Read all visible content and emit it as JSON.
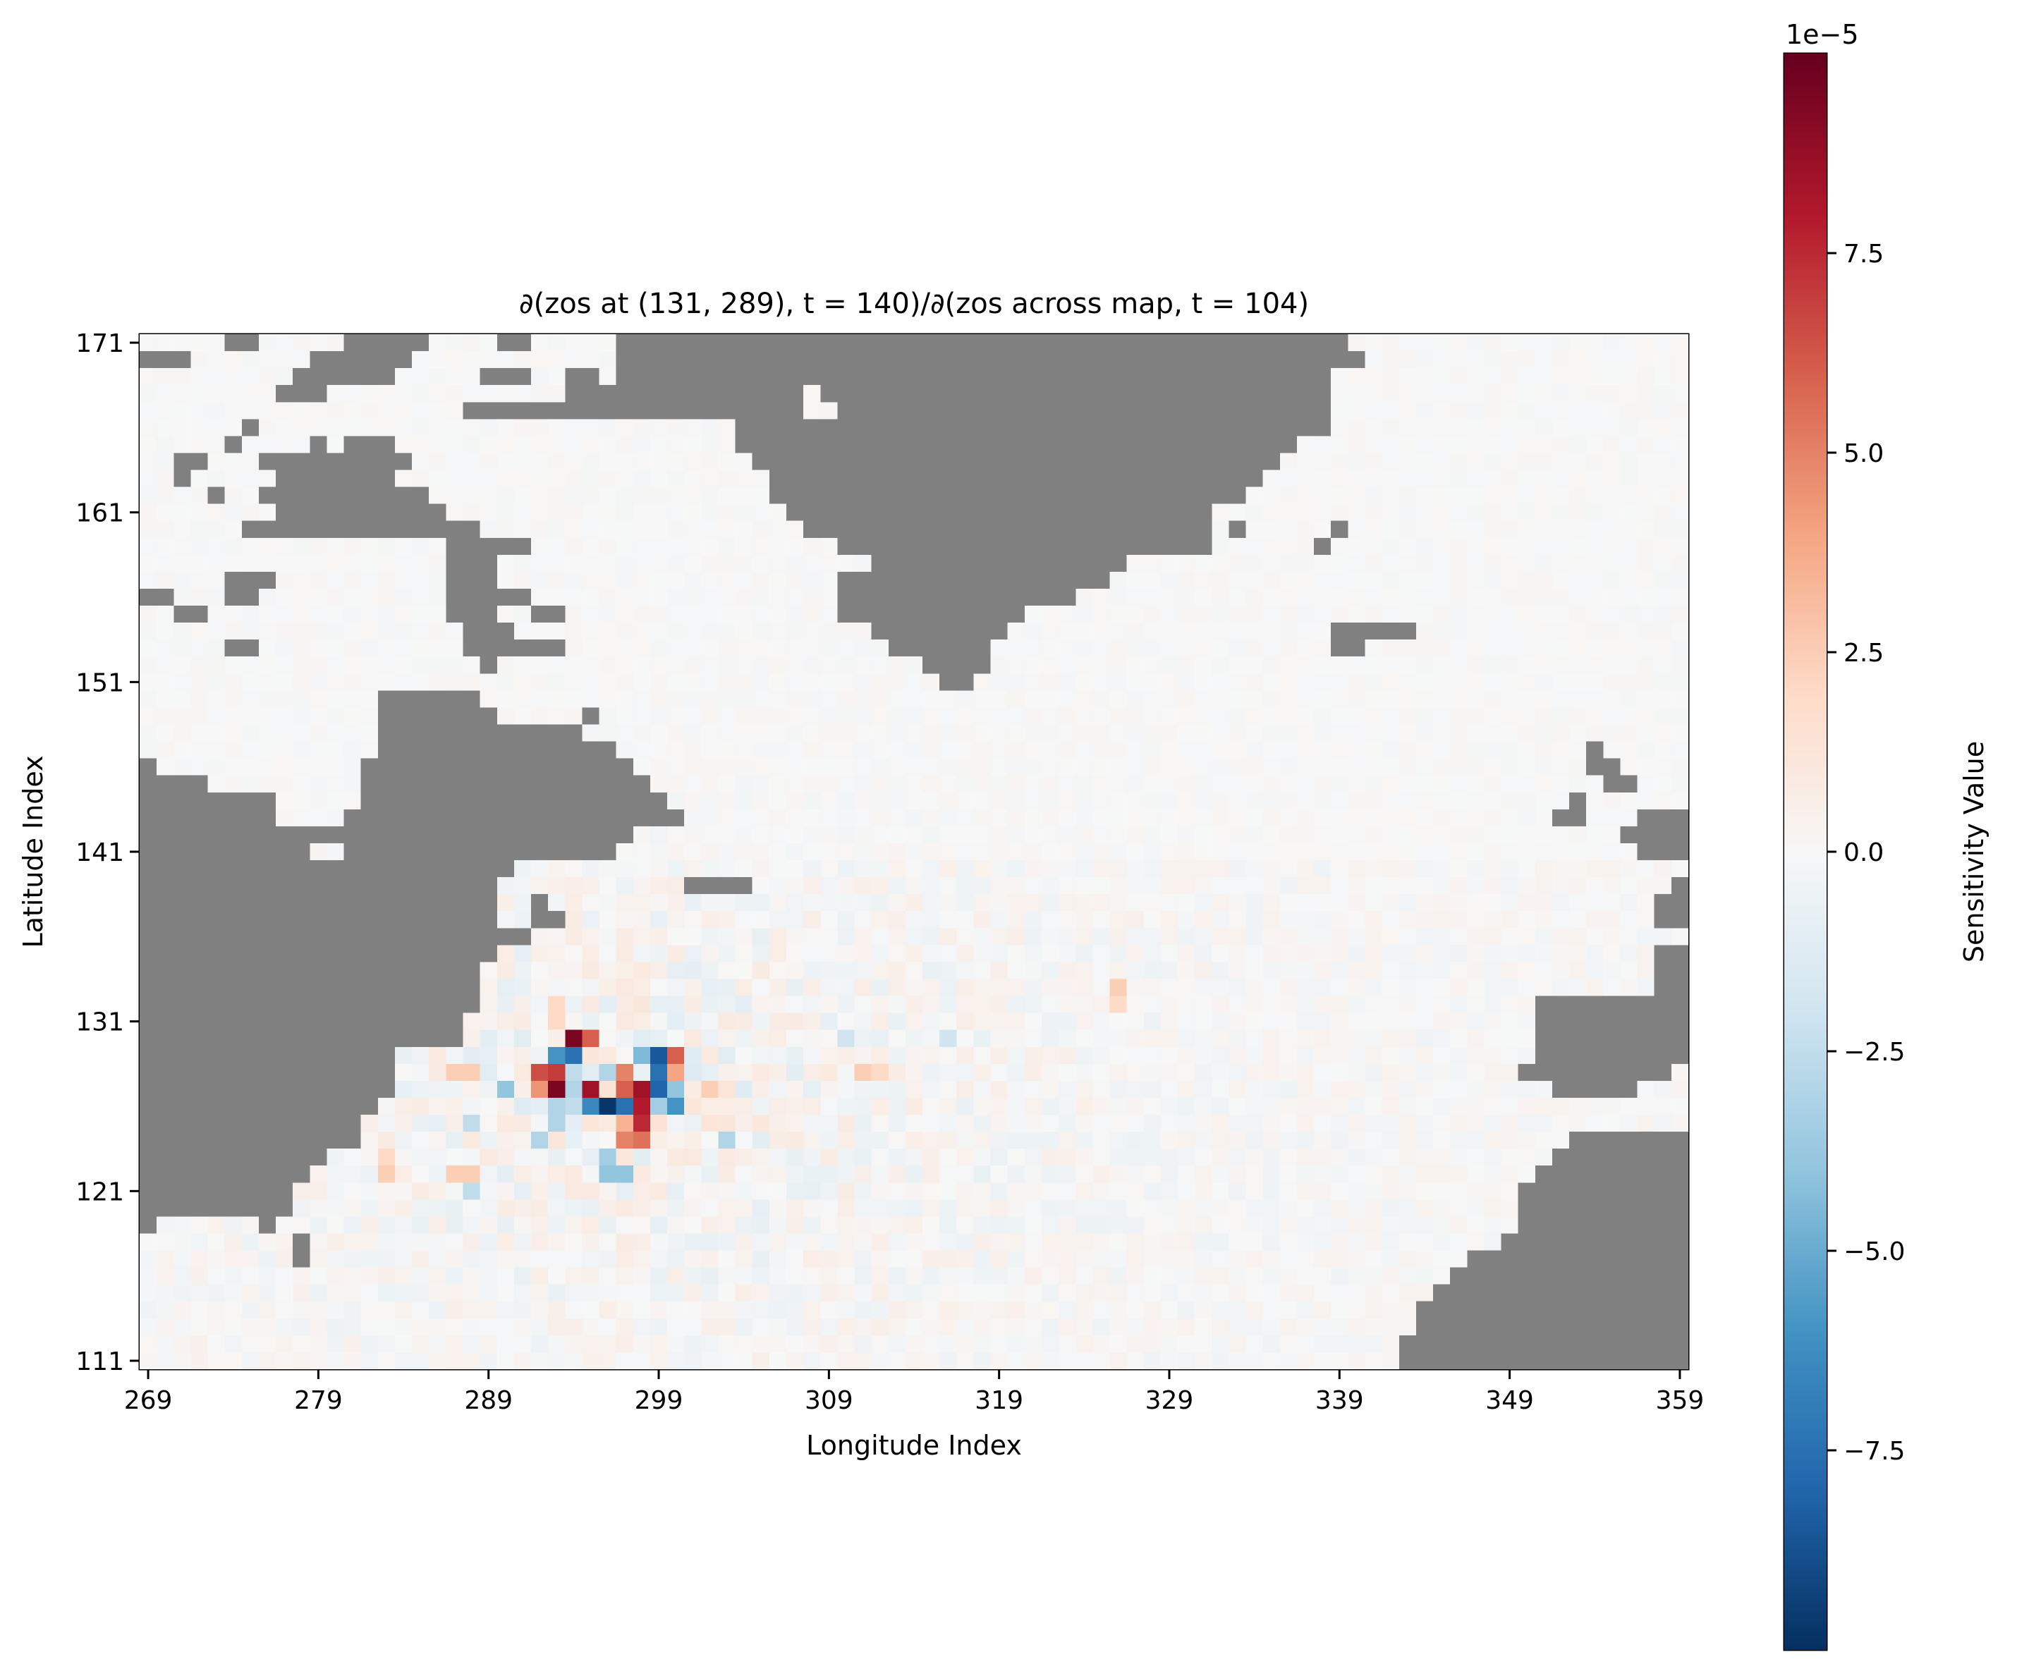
{
  "chart_data": {
    "type": "heatmap",
    "title": "∂(zos at (131, 289), t = 140)/∂(zos across map, t = 104)",
    "xlabel": "Longitude Index",
    "ylabel": "Latitude Index",
    "x_range": [
      269,
      359
    ],
    "y_range": [
      111,
      171
    ],
    "x_ticks": [
      "269",
      "279",
      "289",
      "299",
      "309",
      "319",
      "329",
      "339",
      "349",
      "359"
    ],
    "y_ticks": [
      "171",
      "161",
      "151",
      "141",
      "131",
      "121",
      "111"
    ],
    "colormap": "RdBu_r",
    "land_color": "#808080",
    "marker": {
      "shape": "circle",
      "lat": 131,
      "lon": 289
    },
    "colorbar": {
      "label": "Sensitivity Value",
      "multiplier": "1e−5",
      "range": [
        -10,
        10
      ],
      "ticks": [
        "7.5",
        "5.0",
        "2.5",
        "0.0",
        "−2.5",
        "−5.0",
        "−7.5"
      ],
      "tick_values": [
        7.5,
        5.0,
        2.5,
        0.0,
        -2.5,
        -5.0,
        -7.5
      ]
    },
    "land_cells": [
      [
        171,
        [
          [
            274,
            275
          ],
          [
            281,
            285
          ],
          [
            290,
            291
          ],
          [
            297,
            339
          ]
        ]
      ],
      [
        170,
        [
          [
            269,
            271
          ],
          [
            279,
            284
          ],
          [
            297,
            340
          ]
        ]
      ],
      [
        169,
        [
          [
            278,
            283
          ],
          [
            289,
            291
          ],
          [
            294,
            295
          ],
          [
            297,
            338
          ]
        ]
      ],
      [
        168,
        [
          [
            277,
            279
          ],
          [
            294,
            307
          ],
          [
            309,
            338
          ]
        ]
      ],
      [
        167,
        [
          [
            288,
            307
          ],
          [
            310,
            338
          ]
        ]
      ],
      [
        166,
        [
          [
            275,
            275
          ],
          [
            304,
            338
          ]
        ]
      ],
      [
        165,
        [
          [
            274,
            274
          ],
          [
            279,
            279
          ],
          [
            281,
            283
          ],
          [
            304,
            336
          ]
        ]
      ],
      [
        164,
        [
          [
            271,
            272
          ],
          [
            276,
            284
          ],
          [
            305,
            335
          ]
        ]
      ],
      [
        163,
        [
          [
            271,
            271
          ],
          [
            277,
            283
          ],
          [
            306,
            334
          ]
        ]
      ],
      [
        162,
        [
          [
            273,
            273
          ],
          [
            276,
            285
          ],
          [
            306,
            333
          ]
        ]
      ],
      [
        161,
        [
          [
            277,
            286
          ],
          [
            307,
            331
          ]
        ]
      ],
      [
        160,
        [
          [
            275,
            288
          ],
          [
            308,
            331
          ],
          [
            333,
            333
          ],
          [
            339,
            339
          ]
        ]
      ],
      [
        159,
        [
          [
            287,
            291
          ],
          [
            310,
            331
          ],
          [
            338,
            338
          ]
        ]
      ],
      [
        158,
        [
          [
            287,
            289
          ],
          [
            312,
            326
          ]
        ]
      ],
      [
        157,
        [
          [
            274,
            276
          ],
          [
            287,
            289
          ],
          [
            310,
            325
          ]
        ]
      ],
      [
        156,
        [
          [
            269,
            270
          ],
          [
            274,
            275
          ],
          [
            287,
            291
          ],
          [
            310,
            323
          ]
        ]
      ],
      [
        155,
        [
          [
            271,
            272
          ],
          [
            287,
            289
          ],
          [
            292,
            293
          ],
          [
            310,
            320
          ]
        ]
      ],
      [
        154,
        [
          [
            288,
            290
          ],
          [
            312,
            319
          ],
          [
            339,
            343
          ]
        ]
      ],
      [
        153,
        [
          [
            274,
            275
          ],
          [
            288,
            293
          ],
          [
            313,
            318
          ],
          [
            339,
            340
          ]
        ]
      ],
      [
        152,
        [
          [
            289,
            289
          ],
          [
            315,
            318
          ]
        ]
      ],
      [
        151,
        [
          [
            316,
            317
          ]
        ]
      ],
      [
        150,
        [
          [
            283,
            288
          ]
        ]
      ],
      [
        149,
        [
          [
            283,
            289
          ],
          [
            295,
            295
          ]
        ]
      ],
      [
        148,
        [
          [
            283,
            294
          ]
        ]
      ],
      [
        147,
        [
          [
            283,
            296
          ],
          [
            354,
            354
          ]
        ]
      ],
      [
        146,
        [
          [
            269,
            269
          ],
          [
            282,
            297
          ],
          [
            354,
            355
          ]
        ]
      ],
      [
        145,
        [
          [
            269,
            272
          ],
          [
            282,
            298
          ],
          [
            355,
            356
          ]
        ]
      ],
      [
        144,
        [
          [
            269,
            276
          ],
          [
            282,
            299
          ],
          [
            353,
            353
          ]
        ]
      ],
      [
        143,
        [
          [
            269,
            276
          ],
          [
            281,
            300
          ],
          [
            352,
            353
          ],
          [
            357,
            359
          ]
        ]
      ],
      [
        142,
        [
          [
            269,
            297
          ],
          [
            356,
            359
          ]
        ]
      ],
      [
        141,
        [
          [
            269,
            278
          ],
          [
            281,
            296
          ],
          [
            357,
            359
          ]
        ]
      ],
      [
        140,
        [
          [
            269,
            290
          ]
        ]
      ],
      [
        139,
        [
          [
            269,
            289
          ],
          [
            301,
            304
          ],
          [
            359,
            359
          ]
        ]
      ],
      [
        138,
        [
          [
            269,
            289
          ],
          [
            292,
            292
          ],
          [
            358,
            359
          ]
        ]
      ],
      [
        137,
        [
          [
            269,
            289
          ],
          [
            292,
            293
          ],
          [
            358,
            359
          ]
        ]
      ],
      [
        136,
        [
          [
            269,
            291
          ]
        ]
      ],
      [
        135,
        [
          [
            269,
            289
          ],
          [
            358,
            359
          ]
        ]
      ],
      [
        134,
        [
          [
            269,
            288
          ],
          [
            358,
            359
          ]
        ]
      ],
      [
        133,
        [
          [
            269,
            288
          ],
          [
            358,
            359
          ]
        ]
      ],
      [
        132,
        [
          [
            269,
            288
          ],
          [
            351,
            359
          ]
        ]
      ],
      [
        131,
        [
          [
            269,
            287
          ],
          [
            351,
            359
          ]
        ]
      ],
      [
        130,
        [
          [
            269,
            287
          ],
          [
            351,
            359
          ]
        ]
      ],
      [
        129,
        [
          [
            269,
            283
          ],
          [
            351,
            359
          ]
        ]
      ],
      [
        128,
        [
          [
            269,
            283
          ],
          [
            350,
            358
          ]
        ]
      ],
      [
        127,
        [
          [
            269,
            283
          ],
          [
            352,
            356
          ]
        ]
      ],
      [
        126,
        [
          [
            269,
            282
          ]
        ]
      ],
      [
        125,
        [
          [
            269,
            281
          ]
        ]
      ],
      [
        124,
        [
          [
            269,
            281
          ],
          [
            353,
            359
          ]
        ]
      ],
      [
        123,
        [
          [
            269,
            279
          ],
          [
            352,
            359
          ]
        ]
      ],
      [
        122,
        [
          [
            269,
            278
          ],
          [
            351,
            359
          ]
        ]
      ],
      [
        121,
        [
          [
            269,
            277
          ],
          [
            350,
            359
          ]
        ]
      ],
      [
        120,
        [
          [
            269,
            277
          ],
          [
            350,
            359
          ]
        ]
      ],
      [
        119,
        [
          [
            269,
            269
          ],
          [
            276,
            276
          ],
          [
            350,
            359
          ]
        ]
      ],
      [
        118,
        [
          [
            278,
            278
          ],
          [
            349,
            359
          ]
        ]
      ],
      [
        117,
        [
          [
            278,
            278
          ],
          [
            347,
            359
          ]
        ]
      ],
      [
        116,
        [
          [
            346,
            359
          ]
        ]
      ],
      [
        115,
        [
          [
            345,
            359
          ]
        ]
      ],
      [
        114,
        [
          [
            344,
            359
          ]
        ]
      ],
      [
        113,
        [
          [
            344,
            359
          ]
        ]
      ],
      [
        112,
        [
          [
            343,
            359
          ]
        ]
      ],
      [
        111,
        [
          [
            343,
            359
          ]
        ]
      ]
    ],
    "sensitivity_peaks": [
      {
        "lat": 130,
        "lon": 294,
        "value": 9.5
      },
      {
        "lat": 130,
        "lon": 295,
        "value": 6.0
      },
      {
        "lat": 129,
        "lon": 293,
        "value": -6.0
      },
      {
        "lat": 129,
        "lon": 294,
        "value": -7.5
      },
      {
        "lat": 129,
        "lon": 298,
        "value": -4.5
      },
      {
        "lat": 129,
        "lon": 299,
        "value": -8.5
      },
      {
        "lat": 129,
        "lon": 300,
        "value": 6.0
      },
      {
        "lat": 128,
        "lon": 292,
        "value": 6.5
      },
      {
        "lat": 128,
        "lon": 293,
        "value": 7.0
      },
      {
        "lat": 128,
        "lon": 294,
        "value": -2.5
      },
      {
        "lat": 128,
        "lon": 296,
        "value": -3.0
      },
      {
        "lat": 128,
        "lon": 297,
        "value": 5.0
      },
      {
        "lat": 128,
        "lon": 299,
        "value": -7.5
      },
      {
        "lat": 128,
        "lon": 300,
        "value": 4.0
      },
      {
        "lat": 127,
        "lon": 290,
        "value": -4.0
      },
      {
        "lat": 127,
        "lon": 292,
        "value": 4.5
      },
      {
        "lat": 127,
        "lon": 293,
        "value": 9.5
      },
      {
        "lat": 127,
        "lon": 294,
        "value": -3.0
      },
      {
        "lat": 127,
        "lon": 295,
        "value": 8.5
      },
      {
        "lat": 127,
        "lon": 297,
        "value": 6.0
      },
      {
        "lat": 127,
        "lon": 298,
        "value": 8.5
      },
      {
        "lat": 127,
        "lon": 299,
        "value": -8.0
      },
      {
        "lat": 127,
        "lon": 300,
        "value": -4.0
      },
      {
        "lat": 127,
        "lon": 302,
        "value": 2.5
      },
      {
        "lat": 126,
        "lon": 293,
        "value": -3.0
      },
      {
        "lat": 126,
        "lon": 294,
        "value": -2.5
      },
      {
        "lat": 126,
        "lon": 295,
        "value": -6.5
      },
      {
        "lat": 126,
        "lon": 296,
        "value": -9.8
      },
      {
        "lat": 126,
        "lon": 297,
        "value": -7.5
      },
      {
        "lat": 126,
        "lon": 298,
        "value": 8.0
      },
      {
        "lat": 126,
        "lon": 299,
        "value": -3.5
      },
      {
        "lat": 126,
        "lon": 300,
        "value": -6.0
      },
      {
        "lat": 125,
        "lon": 293,
        "value": -3.0
      },
      {
        "lat": 125,
        "lon": 297,
        "value": 3.5
      },
      {
        "lat": 125,
        "lon": 298,
        "value": 7.5
      },
      {
        "lat": 124,
        "lon": 292,
        "value": -3.0
      },
      {
        "lat": 124,
        "lon": 297,
        "value": 5.0
      },
      {
        "lat": 124,
        "lon": 298,
        "value": 5.5
      },
      {
        "lat": 124,
        "lon": 303,
        "value": -3.0
      },
      {
        "lat": 123,
        "lon": 296,
        "value": -3.5
      },
      {
        "lat": 122,
        "lon": 296,
        "value": -4.0
      },
      {
        "lat": 122,
        "lon": 297,
        "value": -4.0
      },
      {
        "lat": 128,
        "lon": 287,
        "value": 2.5
      },
      {
        "lat": 128,
        "lon": 288,
        "value": 2.5
      },
      {
        "lat": 128,
        "lon": 311,
        "value": 2.5
      },
      {
        "lat": 128,
        "lon": 312,
        "value": 2.0
      },
      {
        "lat": 131,
        "lon": 293,
        "value": 2.0
      },
      {
        "lat": 132,
        "lon": 293,
        "value": 2.0
      },
      {
        "lat": 133,
        "lon": 326,
        "value": 2.5
      },
      {
        "lat": 132,
        "lon": 326,
        "value": 2.0
      },
      {
        "lat": 122,
        "lon": 283,
        "value": 2.5
      },
      {
        "lat": 122,
        "lon": 287,
        "value": 2.5
      },
      {
        "lat": 122,
        "lon": 288,
        "value": 2.5
      },
      {
        "lat": 123,
        "lon": 283,
        "value": 2.0
      },
      {
        "lat": 121,
        "lon": 288,
        "value": -2.5
      },
      {
        "lat": 125,
        "lon": 288,
        "value": -2.5
      },
      {
        "lat": 130,
        "lon": 310,
        "value": -2.0
      },
      {
        "lat": 130,
        "lon": 316,
        "value": -2.0
      }
    ]
  }
}
